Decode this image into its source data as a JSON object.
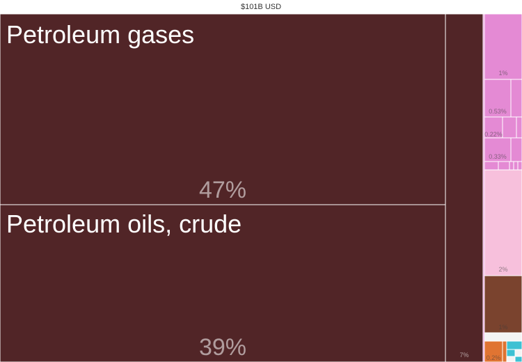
{
  "header": {
    "total": "$101B USD"
  },
  "colors": {
    "mineral": "#512527",
    "pink": "#e48ad4",
    "light_pink": "#f7c0dc",
    "brown": "#7a432e",
    "orange": "#e07432",
    "cyan": "#3ec1d3"
  },
  "chart_data": {
    "type": "treemap",
    "total_label": "$101B USD",
    "items": [
      {
        "name": "Petroleum gases",
        "share_pct": 47,
        "label": "Petroleum gases",
        "pct_label": "47%",
        "color": "#512527"
      },
      {
        "name": "Petroleum oils, crude",
        "share_pct": 39,
        "label": "Petroleum oils, crude",
        "pct_label": "39%",
        "color": "#512527"
      },
      {
        "share_pct": 7,
        "pct_label": "7%",
        "color": "#512527"
      },
      {
        "share_pct": 1,
        "pct_label": "1%",
        "color": "#e48ad4"
      },
      {
        "share_pct": 0.53,
        "pct_label": "0.53%",
        "color": "#e48ad4"
      },
      {
        "share_pct": 0.22,
        "pct_label": "0.22%",
        "color": "#e48ad4"
      },
      {
        "share_pct": 0.33,
        "pct_label": "0.33%",
        "color": "#e48ad4"
      },
      {
        "share_pct": 2,
        "pct_label": "2%",
        "color": "#f7c0dc"
      },
      {
        "share_pct": 1,
        "pct_label": "1%",
        "color": "#7a432e"
      },
      {
        "share_pct": 0.2,
        "pct_label": "0.2%",
        "color": "#e07432"
      }
    ]
  }
}
